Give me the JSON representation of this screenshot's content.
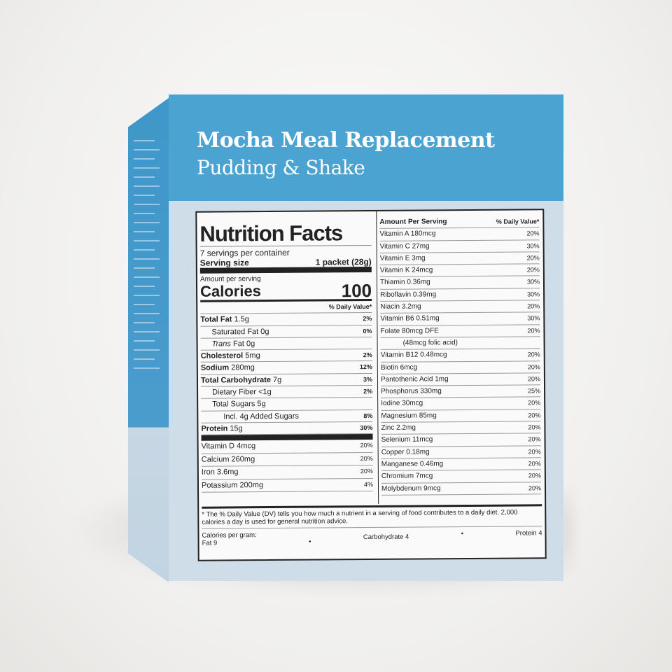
{
  "product": {
    "title_line1": "Mocha Meal Replacement",
    "title_line2": "Pudding & Shake"
  },
  "colors": {
    "brand_blue": "#4aa3d0",
    "panel_light_blue": "#cfdde9"
  },
  "nutrition": {
    "heading": "Nutrition Facts",
    "servings": "7 servings per container",
    "serving_size_label": "Serving size",
    "serving_size_value": "1 packet (28g)",
    "amount_per_serving": "Amount per serving",
    "calories_label": "Calories",
    "calories_value": "100",
    "dv_header": "% Daily Value*",
    "main_rows": [
      {
        "label": "Total Fat",
        "amount": "1.5g",
        "dv": "2%",
        "bold": true,
        "indent": 0
      },
      {
        "label": "Saturated Fat",
        "amount": "0g",
        "dv": "0%",
        "bold": false,
        "indent": 1
      },
      {
        "label": "Trans",
        "label_suffix": "Fat",
        "amount": "0g",
        "dv": "",
        "bold": false,
        "indent": 1,
        "italic": true
      },
      {
        "label": "Cholesterol",
        "amount": "5mg",
        "dv": "2%",
        "bold": true,
        "indent": 0
      },
      {
        "label": "Sodium",
        "amount": "280mg",
        "dv": "12%",
        "bold": true,
        "indent": 0
      },
      {
        "label": "Total Carbohydrate",
        "amount": "7g",
        "dv": "3%",
        "bold": true,
        "indent": 0
      },
      {
        "label": "Dietary Fiber",
        "amount": "<1g",
        "dv": "2%",
        "bold": false,
        "indent": 1
      },
      {
        "label": "Total Sugars",
        "amount": "5g",
        "dv": "",
        "bold": false,
        "indent": 1
      },
      {
        "label": "Incl. 4g Added Sugars",
        "amount": "",
        "dv": "8%",
        "bold": false,
        "indent": 2
      },
      {
        "label": "Protein",
        "amount": "15g",
        "dv": "30%",
        "bold": true,
        "indent": 0
      }
    ],
    "vitamin_rows": [
      {
        "label": "Vitamin D",
        "amount": "4mcg",
        "dv": "20%"
      },
      {
        "label": "Calcium",
        "amount": "260mg",
        "dv": "20%"
      },
      {
        "label": "Iron",
        "amount": "3.6mg",
        "dv": "20%"
      },
      {
        "label": "Potassium",
        "amount": "200mg",
        "dv": "4%"
      }
    ],
    "right_header_left": "Amount Per Serving",
    "right_header_right": "% Daily Value*",
    "right_rows": [
      {
        "label": "Vitamin A",
        "amount": "180mcg",
        "dv": "20%"
      },
      {
        "label": "Vitamin C",
        "amount": "27mg",
        "dv": "30%"
      },
      {
        "label": "Vitamin E",
        "amount": "3mg",
        "dv": "20%"
      },
      {
        "label": "Vitamin K",
        "amount": "24mcg",
        "dv": "20%"
      },
      {
        "label": "Thiamin",
        "amount": "0.36mg",
        "dv": "30%"
      },
      {
        "label": "Riboflavin",
        "amount": "0.39mg",
        "dv": "30%"
      },
      {
        "label": "Niacin",
        "amount": "3.2mg",
        "dv": "20%"
      },
      {
        "label": "Vitamin B6",
        "amount": "0.51mg",
        "dv": "30%"
      },
      {
        "label": "Folate",
        "amount": "80mcg DFE",
        "dv": "20%"
      },
      {
        "label": "(48mcg folic acid)",
        "amount": "",
        "dv": "",
        "sub": true
      },
      {
        "label": "Vitamin B12",
        "amount": "0.48mcg",
        "dv": "20%"
      },
      {
        "label": "Biotin",
        "amount": "6mcg",
        "dv": "20%"
      },
      {
        "label": "Pantothenic Acid",
        "amount": "1mg",
        "dv": "20%"
      },
      {
        "label": "Phosphorus",
        "amount": "330mg",
        "dv": "25%"
      },
      {
        "label": "Iodine",
        "amount": "30mcg",
        "dv": "20%"
      },
      {
        "label": "Magnesium",
        "amount": "85mg",
        "dv": "20%"
      },
      {
        "label": "Zinc",
        "amount": "2.2mg",
        "dv": "20%"
      },
      {
        "label": "Selenium",
        "amount": "11mcg",
        "dv": "20%"
      },
      {
        "label": "Copper",
        "amount": "0.18mg",
        "dv": "20%"
      },
      {
        "label": "Manganese",
        "amount": "0.46mg",
        "dv": "20%"
      },
      {
        "label": "Chromium",
        "amount": "7mcg",
        "dv": "20%"
      },
      {
        "label": "Molybdenum",
        "amount": "9mcg",
        "dv": "20%"
      }
    ],
    "footnote": "* The % Daily Value (DV) tells you how much a nutrient in a serving of food contributes to a daily diet. 2,000 calories a day is used for general nutrition advice.",
    "cal_per_gram_label": "Calories per gram:",
    "fat": "Fat  9",
    "carb": "Carbohydrate  4",
    "protein": "Protein 4",
    "bullet": "•"
  }
}
